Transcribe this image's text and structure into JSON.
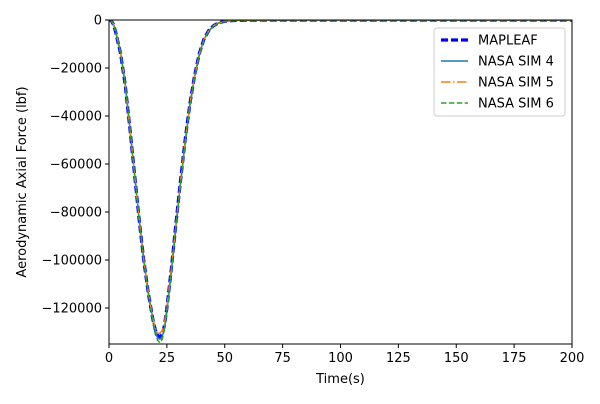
{
  "chart_data": {
    "type": "line",
    "xlabel": "Time(s)",
    "ylabel": "Aerodynamic Axial Force (lbf)",
    "xlim": [
      0,
      200
    ],
    "ylim": [
      -135000,
      0
    ],
    "xticks": [
      0,
      25,
      50,
      75,
      100,
      125,
      150,
      175,
      200
    ],
    "xtick_labels": [
      "0",
      "25",
      "50",
      "75",
      "100",
      "125",
      "150",
      "175",
      "200"
    ],
    "yticks": [
      0,
      -20000,
      -40000,
      -60000,
      -80000,
      -100000,
      -120000
    ],
    "ytick_labels": [
      "0",
      "−20000",
      "−40000",
      "−60000",
      "−80000",
      "−100000",
      "−120000"
    ],
    "grid": false,
    "legend_position": "top-right",
    "series": [
      {
        "name": "MAPLEAF",
        "color": "#0000ff",
        "dash": "dashed-thick",
        "x": [
          0,
          1,
          2,
          3,
          5,
          7,
          9,
          11,
          13,
          15,
          17,
          19,
          20,
          21,
          22,
          23,
          24,
          25,
          27,
          29,
          31,
          33,
          35,
          37,
          39,
          41,
          43,
          45,
          47,
          50,
          55,
          60,
          70,
          80,
          100,
          150,
          200
        ],
        "y": [
          0,
          -300,
          -2000,
          -5500,
          -14000,
          -27000,
          -45000,
          -64000,
          -83000,
          -100000,
          -114000,
          -125000,
          -129000,
          -131500,
          -132000,
          -131000,
          -127000,
          -120000,
          -103000,
          -84000,
          -66000,
          -49000,
          -34500,
          -23000,
          -14000,
          -8000,
          -4500,
          -2500,
          -1300,
          -500,
          -150,
          -50,
          -10,
          0,
          0,
          0,
          0
        ]
      },
      {
        "name": "NASA SIM 4",
        "color": "#1f77b4",
        "dash": "solid",
        "x": [
          0,
          1,
          2,
          3,
          5,
          7,
          9,
          11,
          13,
          15,
          17,
          19,
          20,
          21,
          22,
          23,
          24,
          25,
          27,
          29,
          31,
          33,
          35,
          37,
          39,
          41,
          43,
          45,
          47,
          50,
          55,
          60,
          70,
          80,
          100,
          150,
          200
        ],
        "y": [
          0,
          -250,
          -1800,
          -5000,
          -13500,
          -26500,
          -44500,
          -63500,
          -82500,
          -99500,
          -113500,
          -125000,
          -129500,
          -132500,
          -133000,
          -132000,
          -128000,
          -121000,
          -104000,
          -85000,
          -67000,
          -50000,
          -35000,
          -23500,
          -14500,
          -8300,
          -4700,
          -2600,
          -1400,
          -550,
          -160,
          -50,
          -10,
          0,
          0,
          0,
          0
        ]
      },
      {
        "name": "NASA SIM 5",
        "color": "#ff7f0e",
        "dash": "dashdot",
        "x": [
          0,
          1,
          2,
          3,
          5,
          7,
          9,
          11,
          13,
          15,
          17,
          19,
          20,
          21,
          22,
          23,
          24,
          25,
          27,
          29,
          31,
          33,
          35,
          37,
          39,
          41,
          43,
          45,
          47,
          50,
          55,
          60,
          70,
          80,
          100,
          150,
          200
        ],
        "y": [
          0,
          -250,
          -1900,
          -5200,
          -13800,
          -26800,
          -44800,
          -63800,
          -82800,
          -99800,
          -113800,
          -124500,
          -128500,
          -130500,
          -130500,
          -129500,
          -126000,
          -119500,
          -103000,
          -84500,
          -66500,
          -49500,
          -34800,
          -23200,
          -14200,
          -8100,
          -4600,
          -2500,
          -1350,
          -520,
          -150,
          -50,
          -10,
          0,
          0,
          0,
          0
        ]
      },
      {
        "name": "NASA SIM 6",
        "color": "#2ca02c",
        "dash": "dashed",
        "x": [
          0,
          1,
          2,
          3,
          5,
          7,
          9,
          11,
          13,
          15,
          17,
          19,
          20,
          21,
          22,
          23,
          24,
          25,
          27,
          29,
          31,
          33,
          35,
          37,
          39,
          41,
          43,
          45,
          47,
          50,
          55,
          60,
          70,
          80,
          100,
          150,
          200
        ],
        "y": [
          0,
          -280,
          -1950,
          -5300,
          -13900,
          -27000,
          -45200,
          -64200,
          -83200,
          -100200,
          -114500,
          -126000,
          -131000,
          -133500,
          -134500,
          -133000,
          -128500,
          -121500,
          -104500,
          -85500,
          -67500,
          -50200,
          -35200,
          -23600,
          -14400,
          -8200,
          -4650,
          -2550,
          -1380,
          -530,
          -155,
          -50,
          -10,
          0,
          0,
          0,
          0
        ]
      }
    ]
  }
}
